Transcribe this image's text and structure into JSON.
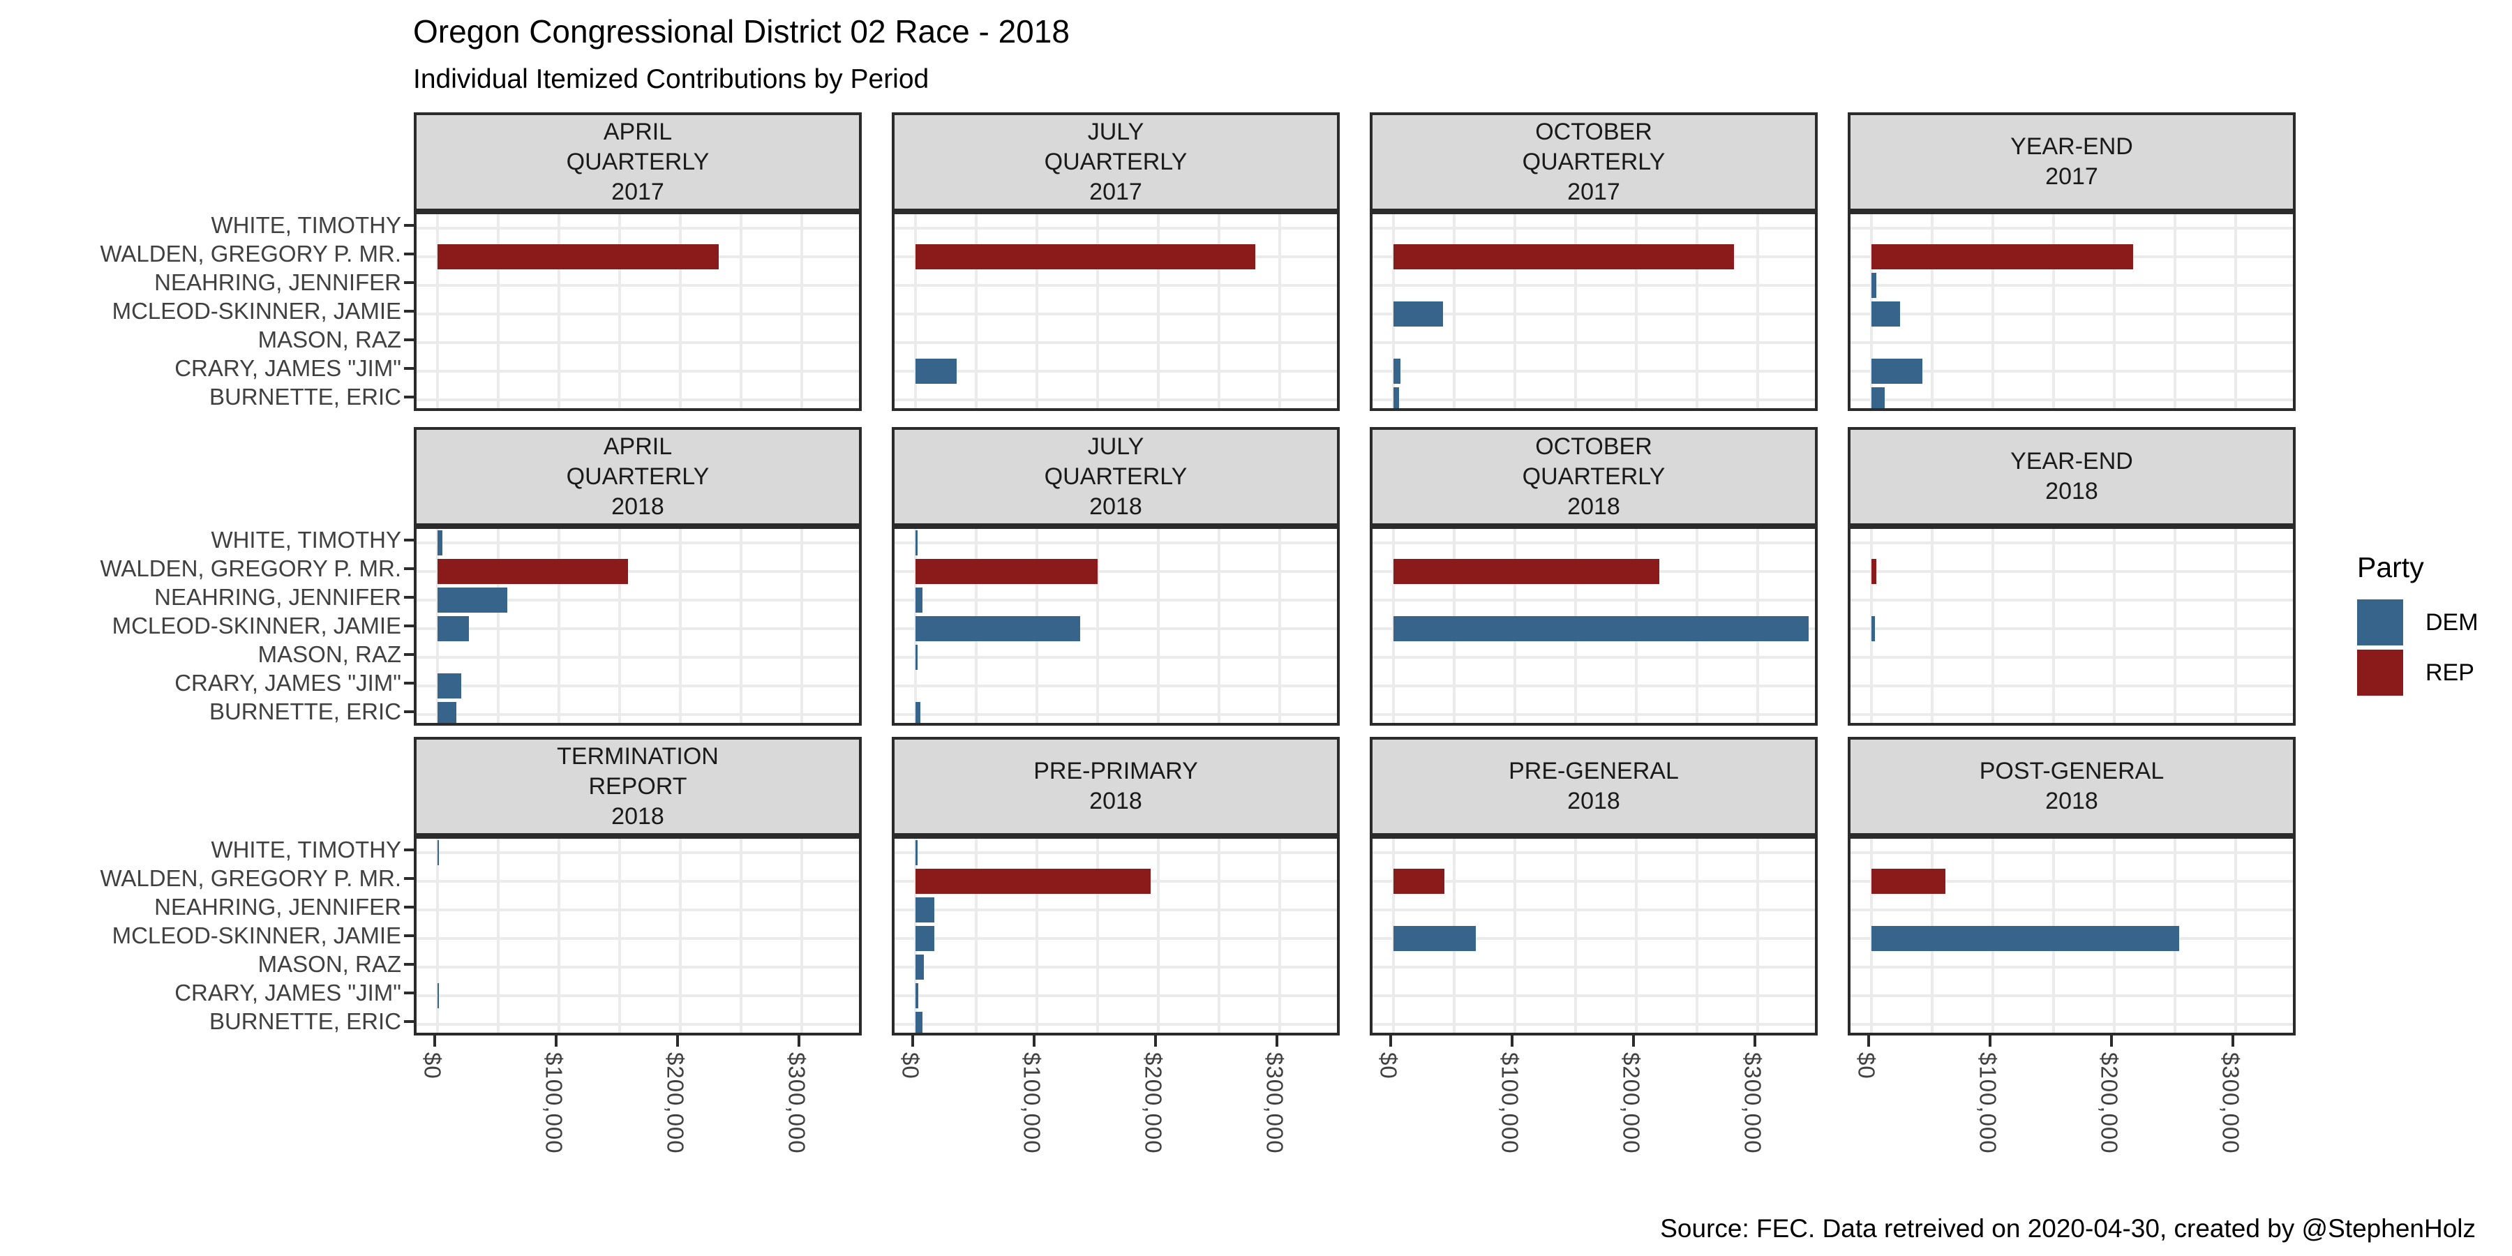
{
  "title": "Oregon Congressional District 02 Race - 2018",
  "subtitle": "Individual Itemized Contributions by Period",
  "caption": "Source: FEC. Data retreived on 2020-04-30, created by @StephenHolz",
  "legend": {
    "title": "Party",
    "items": [
      {
        "label": "DEM",
        "color": "#36648B"
      },
      {
        "label": "REP",
        "color": "#8B1A1A"
      }
    ]
  },
  "chart_data": {
    "type": "bar",
    "orientation": "horizontal",
    "grid": true,
    "legend_position": "right",
    "candidates_top_to_bottom": [
      "WHITE, TIMOTHY",
      "WALDEN, GREGORY P. MR.",
      "NEAHRING, JENNIFER",
      "MCLEOD-SKINNER, JAMIE",
      "MASON, RAZ",
      "CRARY, JAMES \"JIM\"",
      "BURNETTE, ERIC"
    ],
    "party_colors": {
      "DEM": "#36648B",
      "REP": "#8B1A1A"
    },
    "x_domain": [
      -17000,
      352000
    ],
    "x_ticks": [
      {
        "value": 0,
        "label": "$0"
      },
      {
        "value": 100000,
        "label": "$100,000"
      },
      {
        "value": 200000,
        "label": "$200,000"
      },
      {
        "value": 300000,
        "label": "$300,000"
      }
    ],
    "x_minor_gridlines": [
      50000,
      150000,
      250000,
      350000
    ],
    "facets": [
      {
        "period": "APRIL QUARTERLY 2017",
        "label_lines": [
          "APRIL",
          "QUARTERLY",
          "2017"
        ],
        "bars": [
          {
            "candidate": "WALDEN, GREGORY P. MR.",
            "party": "REP",
            "value": 232000
          }
        ]
      },
      {
        "period": "JULY QUARTERLY 2017",
        "label_lines": [
          "JULY",
          "QUARTERLY",
          "2017"
        ],
        "bars": [
          {
            "candidate": "WALDEN, GREGORY P. MR.",
            "party": "REP",
            "value": 280000
          },
          {
            "candidate": "CRARY, JAMES \"JIM\"",
            "party": "DEM",
            "value": 34000
          }
        ]
      },
      {
        "period": "OCTOBER QUARTERLY 2017",
        "label_lines": [
          "OCTOBER",
          "QUARTERLY",
          "2017"
        ],
        "bars": [
          {
            "candidate": "WALDEN, GREGORY P. MR.",
            "party": "REP",
            "value": 281000
          },
          {
            "candidate": "MCLEOD-SKINNER, JAMIE",
            "party": "DEM",
            "value": 41000
          },
          {
            "candidate": "CRARY, JAMES \"JIM\"",
            "party": "DEM",
            "value": 6000
          },
          {
            "candidate": "BURNETTE, ERIC",
            "party": "DEM",
            "value": 5000
          }
        ]
      },
      {
        "period": "YEAR-END 2017",
        "label_lines": [
          "YEAR-END",
          "2017"
        ],
        "bars": [
          {
            "candidate": "WALDEN, GREGORY P. MR.",
            "party": "REP",
            "value": 216000
          },
          {
            "candidate": "NEAHRING, JENNIFER",
            "party": "DEM",
            "value": 4000
          },
          {
            "candidate": "MCLEOD-SKINNER, JAMIE",
            "party": "DEM",
            "value": 24000
          },
          {
            "candidate": "CRARY, JAMES \"JIM\"",
            "party": "DEM",
            "value": 42000
          },
          {
            "candidate": "BURNETTE, ERIC",
            "party": "DEM",
            "value": 11000
          }
        ]
      },
      {
        "period": "APRIL QUARTERLY 2018",
        "label_lines": [
          "APRIL",
          "QUARTERLY",
          "2018"
        ],
        "bars": [
          {
            "candidate": "WHITE, TIMOTHY",
            "party": "DEM",
            "value": 4000
          },
          {
            "candidate": "WALDEN, GREGORY P. MR.",
            "party": "REP",
            "value": 157000
          },
          {
            "candidate": "NEAHRING, JENNIFER",
            "party": "DEM",
            "value": 58000
          },
          {
            "candidate": "MCLEOD-SKINNER, JAMIE",
            "party": "DEM",
            "value": 26000
          },
          {
            "candidate": "CRARY, JAMES \"JIM\"",
            "party": "DEM",
            "value": 20000
          },
          {
            "candidate": "BURNETTE, ERIC",
            "party": "DEM",
            "value": 16000
          }
        ]
      },
      {
        "period": "JULY QUARTERLY 2018",
        "label_lines": [
          "JULY",
          "QUARTERLY",
          "2018"
        ],
        "bars": [
          {
            "candidate": "WHITE, TIMOTHY",
            "party": "DEM",
            "value": 2000
          },
          {
            "candidate": "WALDEN, GREGORY P. MR.",
            "party": "REP",
            "value": 150000
          },
          {
            "candidate": "NEAHRING, JENNIFER",
            "party": "DEM",
            "value": 6000
          },
          {
            "candidate": "MCLEOD-SKINNER, JAMIE",
            "party": "DEM",
            "value": 136000
          },
          {
            "candidate": "MASON, RAZ",
            "party": "DEM",
            "value": 2000
          },
          {
            "candidate": "BURNETTE, ERIC",
            "party": "DEM",
            "value": 4000
          }
        ]
      },
      {
        "period": "OCTOBER QUARTERLY 2018",
        "label_lines": [
          "OCTOBER",
          "QUARTERLY",
          "2018"
        ],
        "bars": [
          {
            "candidate": "WALDEN, GREGORY P. MR.",
            "party": "REP",
            "value": 219000
          },
          {
            "candidate": "MCLEOD-SKINNER, JAMIE",
            "party": "DEM",
            "value": 342000
          }
        ]
      },
      {
        "period": "YEAR-END 2018",
        "label_lines": [
          "YEAR-END",
          "2018"
        ],
        "bars": [
          {
            "candidate": "WALDEN, GREGORY P. MR.",
            "party": "REP",
            "value": 4000
          },
          {
            "candidate": "MCLEOD-SKINNER, JAMIE",
            "party": "DEM",
            "value": 3000
          }
        ]
      },
      {
        "period": "TERMINATION REPORT 2018",
        "label_lines": [
          "TERMINATION",
          "REPORT",
          "2018"
        ],
        "bars": [
          {
            "candidate": "WHITE, TIMOTHY",
            "party": "DEM",
            "value": 1500
          },
          {
            "candidate": "CRARY, JAMES \"JIM\"",
            "party": "DEM",
            "value": 1500
          }
        ]
      },
      {
        "period": "PRE-PRIMARY 2018",
        "label_lines": [
          "PRE-PRIMARY",
          "2018"
        ],
        "bars": [
          {
            "candidate": "WHITE, TIMOTHY",
            "party": "DEM",
            "value": 2000
          },
          {
            "candidate": "WALDEN, GREGORY P. MR.",
            "party": "REP",
            "value": 194000
          },
          {
            "candidate": "NEAHRING, JENNIFER",
            "party": "DEM",
            "value": 16000
          },
          {
            "candidate": "MCLEOD-SKINNER, JAMIE",
            "party": "DEM",
            "value": 16000
          },
          {
            "candidate": "MASON, RAZ",
            "party": "DEM",
            "value": 7000
          },
          {
            "candidate": "CRARY, JAMES \"JIM\"",
            "party": "DEM",
            "value": 2500
          },
          {
            "candidate": "BURNETTE, ERIC",
            "party": "DEM",
            "value": 6000
          }
        ]
      },
      {
        "period": "PRE-GENERAL 2018",
        "label_lines": [
          "PRE-GENERAL",
          "2018"
        ],
        "bars": [
          {
            "candidate": "WALDEN, GREGORY P. MR.",
            "party": "REP",
            "value": 42000
          },
          {
            "candidate": "MCLEOD-SKINNER, JAMIE",
            "party": "DEM",
            "value": 68000
          }
        ]
      },
      {
        "period": "POST-GENERAL 2018",
        "label_lines": [
          "POST-GENERAL",
          "2018"
        ],
        "bars": [
          {
            "candidate": "WALDEN, GREGORY P. MR.",
            "party": "REP",
            "value": 61000
          },
          {
            "candidate": "MCLEOD-SKINNER, JAMIE",
            "party": "DEM",
            "value": 254000
          }
        ]
      }
    ]
  }
}
